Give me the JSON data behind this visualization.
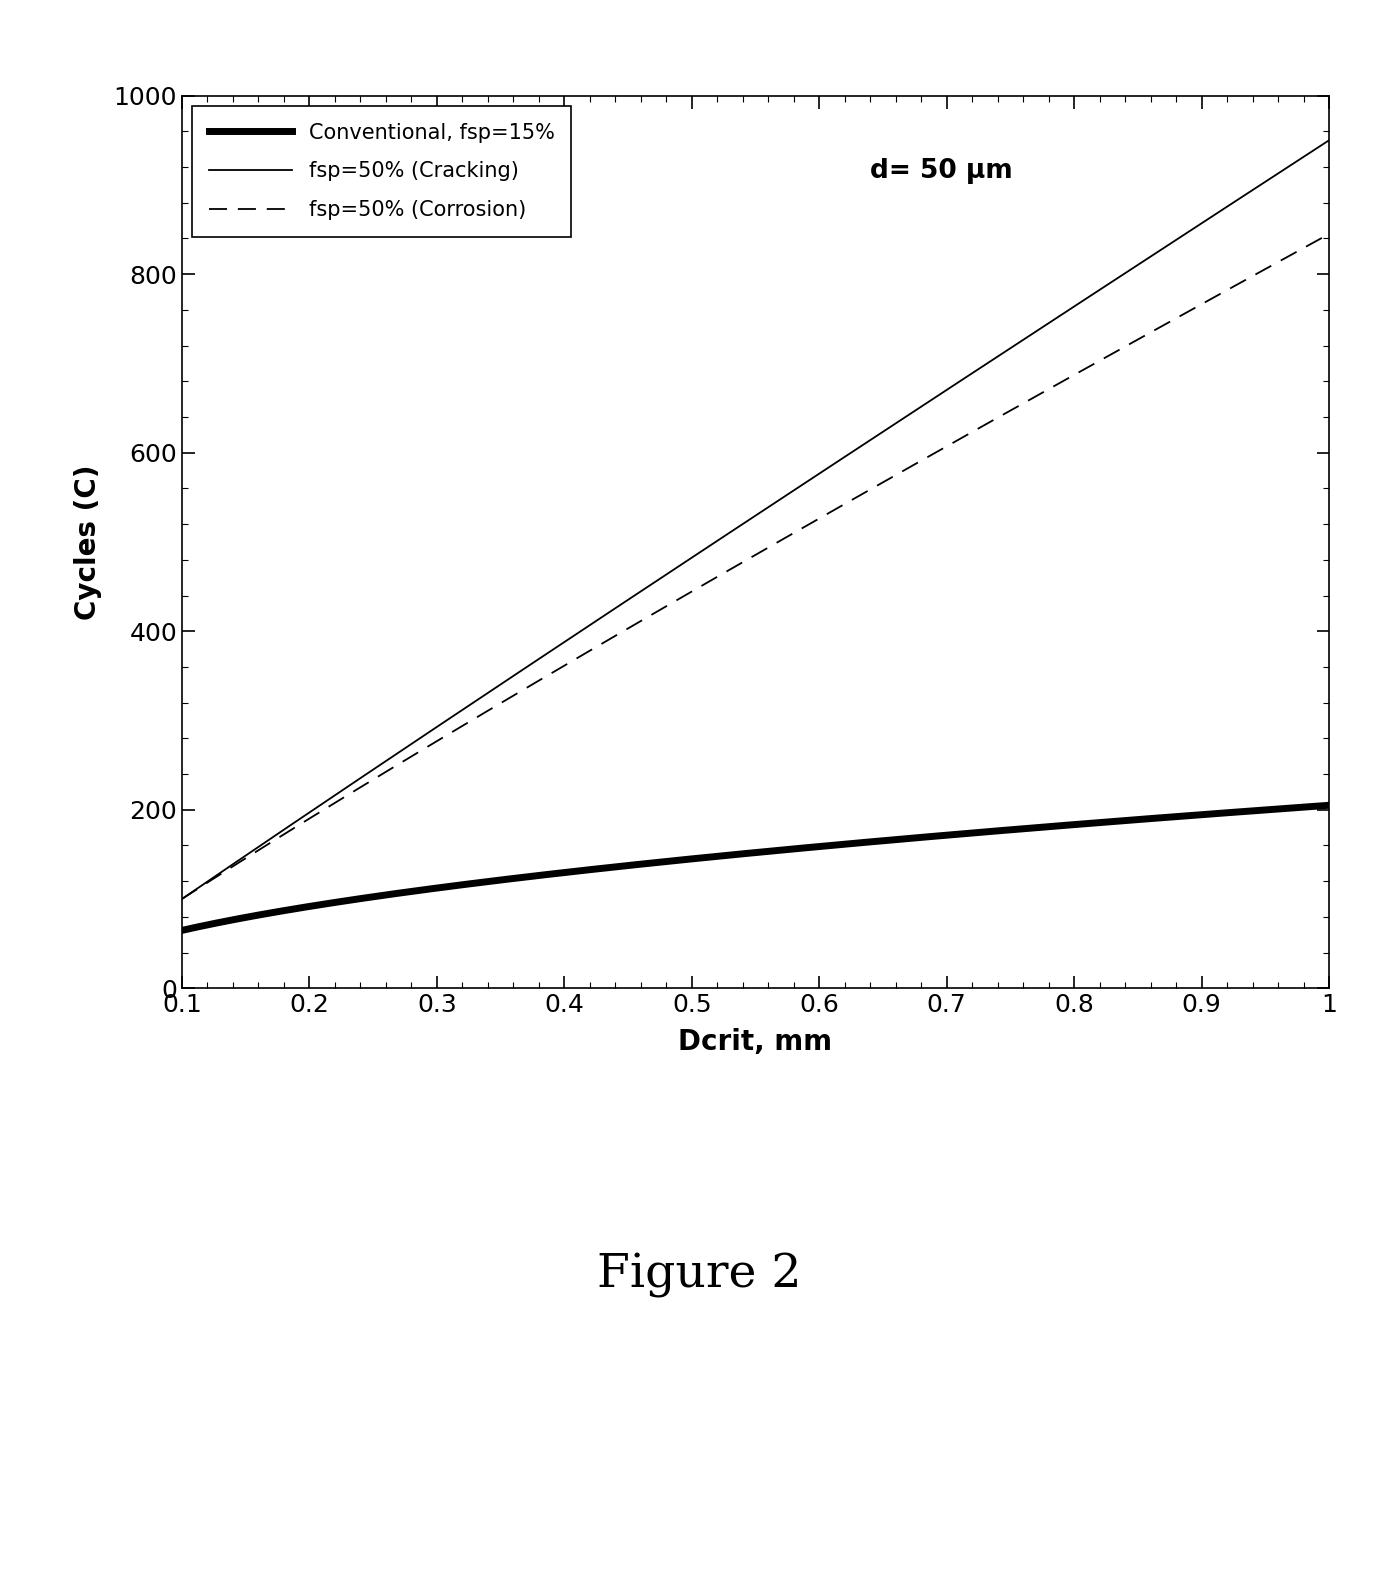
{
  "title": "",
  "xlabel": "Dcrit, mm",
  "ylabel": "Cycles (C)",
  "xlim": [
    0.1,
    1.0
  ],
  "ylim": [
    0,
    1000
  ],
  "xticks": [
    0.1,
    0.2,
    0.3,
    0.4,
    0.5,
    0.6,
    0.7,
    0.8,
    0.9,
    1.0
  ],
  "xtick_labels": [
    "0.1",
    "0.2",
    "0.3",
    "0.4",
    "0.5",
    "0.6",
    "0.7",
    "0.8",
    "0.9",
    "1"
  ],
  "yticks": [
    0,
    200,
    400,
    600,
    800,
    1000
  ],
  "annotation": "d= 50 μm",
  "figure_caption": "Figure 2",
  "legend_entries": [
    {
      "label": "Conventional, fsp=15%",
      "linestyle": "solid",
      "linewidth": 5,
      "color": "#000000"
    },
    {
      "label": "fsp=50% (Cracking)",
      "linestyle": "solid",
      "linewidth": 1.3,
      "color": "#000000"
    },
    {
      "label": "fsp=50% (Corrosion)",
      "linestyle": "dashed",
      "linewidth": 1.3,
      "color": "#000000"
    }
  ],
  "conv_power": 0.5,
  "conv_scale": 205.0,
  "cracking_power": 1.3,
  "cracking_scale": 950.0,
  "corrosion_power": 1.3,
  "corrosion_scale": 845.0,
  "background_color": "#ffffff"
}
